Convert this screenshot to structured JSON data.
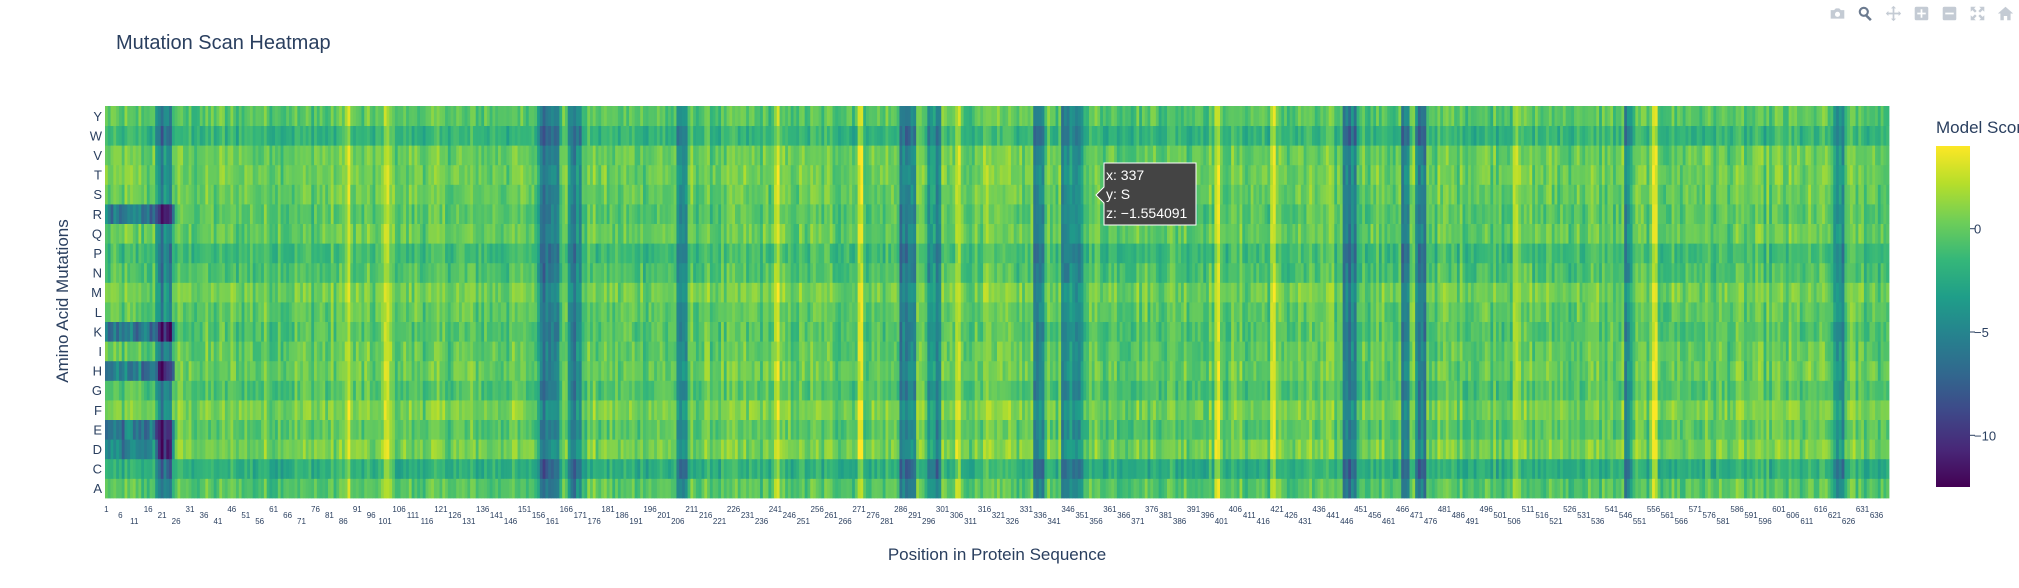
{
  "modebar": {
    "buttons": [
      {
        "name": "camera-icon",
        "active": false
      },
      {
        "name": "zoom-icon",
        "active": true
      },
      {
        "name": "pan-icon",
        "active": false
      },
      {
        "name": "zoom-in-icon",
        "active": false
      },
      {
        "name": "zoom-out-icon",
        "active": false
      },
      {
        "name": "autoscale-icon",
        "active": false
      },
      {
        "name": "home-icon",
        "active": false
      }
    ],
    "color_inactive": "#c4cbd4",
    "color_active": "#6b7a8f"
  },
  "chart_data": {
    "type": "heatmap",
    "title": "Mutation Scan Heatmap",
    "xlabel": "Position in Protein Sequence",
    "ylabel": "Amino Acid Mutations",
    "y_categories": [
      "A",
      "C",
      "D",
      "E",
      "F",
      "G",
      "H",
      "I",
      "K",
      "L",
      "M",
      "N",
      "P",
      "Q",
      "R",
      "S",
      "T",
      "V",
      "W",
      "Y"
    ],
    "x_range": [
      1,
      640
    ],
    "colorscale": "Viridis",
    "colorscale_stops": [
      "#440154",
      "#482878",
      "#3e4989",
      "#31688e",
      "#26828e",
      "#1f9e89",
      "#35b779",
      "#6ece58",
      "#b5de2b",
      "#fde725"
    ],
    "zrange": [
      -12.5,
      4
    ],
    "colorbar": {
      "title": "Model Score",
      "tickvals": [
        0,
        -5,
        -10
      ],
      "ticktext": [
        "0",
        "−5",
        "−10"
      ]
    },
    "hover": {
      "x": "x: 337",
      "y": "y: S",
      "z": "z: −1.554091"
    }
  }
}
